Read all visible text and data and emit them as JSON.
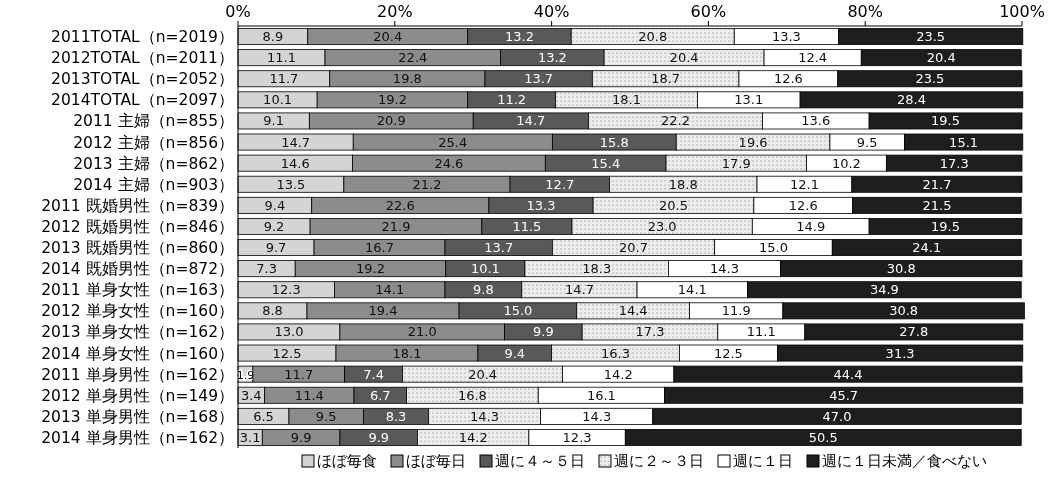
{
  "chart_data": {
    "type": "bar",
    "orientation": "horizontal",
    "stacked": true,
    "legend": "bottom",
    "categories": [
      "2011TOTAL（n=2019）",
      "2012TOTAL（n=2011）",
      "2013TOTAL（n=2052）",
      "2014TOTAL（n=2097）",
      "2011 主婦（n=855）",
      "2012 主婦（n=856）",
      "2013 主婦（n=862）",
      "2014 主婦（n=903）",
      "2011 既婚男性（n=839）",
      "2012 既婚男性（n=846）",
      "2013 既婚男性（n=860）",
      "2014 既婚男性（n=872）",
      "2011 単身女性（n=163）",
      "2012 単身女性（n=160）",
      "2013 単身女性（n=162）",
      "2014 単身女性（n=160）",
      "2011 単身男性（n=162）",
      "2012 単身男性（n=149）",
      "2013 単身男性（n=168）",
      "2014 単身男性（n=162）"
    ],
    "xlim": [
      0,
      100
    ],
    "xticks": [
      {
        "value": 0,
        "label": "0%"
      },
      {
        "value": 20,
        "label": "20%"
      },
      {
        "value": 40,
        "label": "40%"
      },
      {
        "value": 60,
        "label": "60%"
      },
      {
        "value": 80,
        "label": "80%"
      },
      {
        "value": 100,
        "label": "100%"
      }
    ],
    "series": [
      {
        "name": "ほぼ毎食",
        "color": "#d4d4d4",
        "values": [
          8.9,
          11.1,
          11.7,
          10.1,
          9.1,
          14.7,
          14.6,
          13.5,
          9.4,
          9.2,
          9.7,
          7.3,
          12.3,
          8.8,
          13.0,
          12.5,
          1.9,
          3.4,
          6.5,
          3.1
        ],
        "value_labels": [
          "8.9",
          "11.1",
          "11.7",
          "10.1",
          "9.1",
          "14.7",
          "14.6",
          "13.5",
          "9.4",
          "9.2",
          "9.7",
          "7.3",
          "12.3",
          "8.8",
          "13.0",
          "12.5",
          "1.9",
          "3.4",
          "6.5",
          "3.1"
        ]
      },
      {
        "name": "ほぼ毎日",
        "color": "#8c8c8c",
        "values": [
          20.4,
          22.4,
          19.8,
          19.2,
          20.9,
          25.4,
          24.6,
          21.2,
          22.6,
          21.9,
          16.7,
          19.2,
          14.1,
          19.4,
          21.0,
          18.1,
          11.7,
          11.4,
          9.5,
          9.9
        ],
        "value_labels": [
          "20.4",
          "22.4",
          "19.8",
          "19.2",
          "20.9",
          "25.4",
          "24.6",
          "21.2",
          "22.6",
          "21.9",
          "16.7",
          "19.2",
          "14.1",
          "19.4",
          "21.0",
          "18.1",
          "11.7",
          "11.4",
          "9.5",
          "9.9"
        ]
      },
      {
        "name": "週に４～５日",
        "color": "#595959",
        "values": [
          13.2,
          13.2,
          13.7,
          11.2,
          14.7,
          15.8,
          15.4,
          12.7,
          13.3,
          11.5,
          13.7,
          10.1,
          9.8,
          15.0,
          9.9,
          9.4,
          7.4,
          6.7,
          8.3,
          9.9
        ],
        "value_labels": [
          "13.2",
          "13.2",
          "13.7",
          "11.2",
          "14.7",
          "15.8",
          "15.4",
          "12.7",
          "13.3",
          "11.5",
          "13.7",
          "10.1",
          "9.8",
          "15.0",
          "9.9",
          "9.4",
          "7.4",
          "6.7",
          "8.3",
          "9.9"
        ]
      },
      {
        "name": "週に２～３日",
        "color": "#ececec",
        "values": [
          20.8,
          20.4,
          18.7,
          18.1,
          22.2,
          19.6,
          17.9,
          18.8,
          20.5,
          23.0,
          20.7,
          18.3,
          14.7,
          14.4,
          17.3,
          16.3,
          20.4,
          16.8,
          14.3,
          14.2
        ],
        "value_labels": [
          "20.8",
          "20.4",
          "18.7",
          "18.1",
          "22.2",
          "19.6",
          "17.9",
          "18.8",
          "20.5",
          "23.0",
          "20.7",
          "18.3",
          "14.7",
          "14.4",
          "17.3",
          "16.3",
          "20.4",
          "16.8",
          "14.3",
          "14.2"
        ]
      },
      {
        "name": "週に１日",
        "color": "#ffffff",
        "values": [
          13.3,
          12.4,
          12.6,
          13.1,
          13.6,
          9.5,
          10.2,
          12.1,
          12.6,
          14.9,
          15.0,
          14.3,
          14.1,
          11.9,
          11.1,
          12.5,
          14.2,
          16.1,
          14.3,
          12.3
        ],
        "value_labels": [
          "13.3",
          "12.4",
          "12.6",
          "13.1",
          "13.6",
          "9.5",
          "10.2",
          "12.1",
          "12.6",
          "14.9",
          "15.0",
          "14.3",
          "14.1",
          "11.9",
          "11.1",
          "12.5",
          "14.2",
          "16.1",
          "14.3",
          "12.3"
        ]
      },
      {
        "name": "週に１日未満／食べない",
        "color": "#1e1e1e",
        "values": [
          23.5,
          20.4,
          23.5,
          28.4,
          19.5,
          15.1,
          17.3,
          21.7,
          21.5,
          19.5,
          24.1,
          30.8,
          34.9,
          30.8,
          27.8,
          31.3,
          44.4,
          45.7,
          47.0,
          50.5
        ],
        "value_labels": [
          "23.5",
          "20.4",
          "23.5",
          "28.4",
          "19.5",
          "15.1",
          "17.3",
          "21.7",
          "21.5",
          "19.5",
          "24.1",
          "30.8",
          "34.9",
          "30.8",
          "27.8",
          "31.3",
          "44.4",
          "45.7",
          "47.0",
          "50.5"
        ]
      }
    ]
  }
}
